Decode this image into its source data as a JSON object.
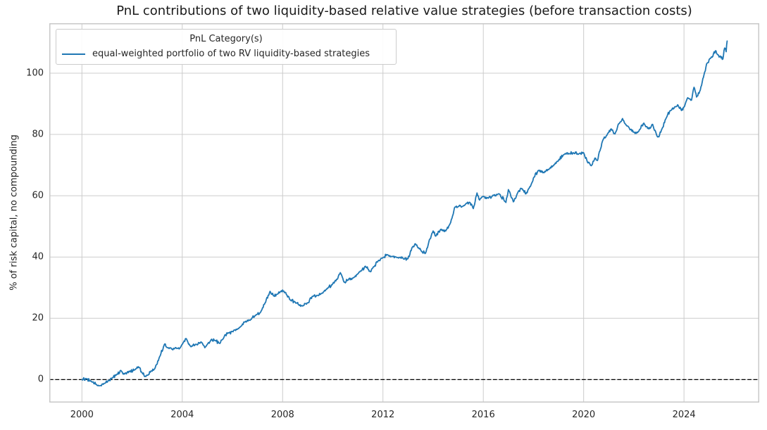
{
  "chart_data": {
    "type": "line",
    "title": "PnL contributions of two liquidity-based relative value strategies (before transaction costs)",
    "xlabel": "",
    "ylabel": "% of risk capital, no compounding",
    "xlim": [
      1998.7,
      2027.0
    ],
    "ylim": [
      -7.5,
      116.3
    ],
    "grid": true,
    "x_ticks": {
      "values": [
        2000,
        2004,
        2008,
        2012,
        2016,
        2020,
        2024
      ],
      "labels": [
        "2000",
        "2004",
        "2008",
        "2012",
        "2016",
        "2020",
        "2024"
      ]
    },
    "y_ticks": {
      "values": [
        0,
        20,
        40,
        60,
        80,
        100
      ],
      "labels": [
        "0",
        "20",
        "40",
        "60",
        "80",
        "100"
      ]
    },
    "zero_line": {
      "y": 0,
      "style": "dashed",
      "color": "#000000"
    },
    "legend": {
      "title": "PnL Category(s)",
      "position": "upper left",
      "entries": [
        {
          "label": "equal-weighted portfolio of two RV liquidity-based strategies",
          "color": "#1f77b4"
        }
      ]
    },
    "render_noise": {
      "amplitude": 0.55,
      "per_year": 40,
      "seed": 12
    },
    "series": [
      {
        "name": "equal-weighted portfolio of two RV liquidity-based strategies",
        "color": "#1f77b4",
        "x": [
          2000.0,
          2000.17,
          2000.4,
          2000.7,
          2000.9,
          2001.05,
          2001.2,
          2001.4,
          2001.55,
          2001.7,
          2001.9,
          2002.1,
          2002.25,
          2002.4,
          2002.55,
          2002.75,
          2002.9,
          2003.1,
          2003.3,
          2003.45,
          2003.6,
          2003.75,
          2003.9,
          2004.0,
          2004.15,
          2004.35,
          2004.55,
          2004.75,
          2004.9,
          2005.0,
          2005.15,
          2005.3,
          2005.5,
          2005.7,
          2005.85,
          2006.0,
          2006.2,
          2006.35,
          2006.5,
          2006.7,
          2006.9,
          2007.1,
          2007.3,
          2007.5,
          2007.65,
          2007.8,
          2007.95,
          2008.1,
          2008.3,
          2008.5,
          2008.65,
          2008.8,
          2009.0,
          2009.2,
          2009.4,
          2009.6,
          2009.8,
          2010.0,
          2010.2,
          2010.3,
          2010.45,
          2010.6,
          2010.8,
          2011.0,
          2011.15,
          2011.3,
          2011.5,
          2011.6,
          2011.8,
          2012.0,
          2012.15,
          2012.35,
          2012.6,
          2012.85,
          2013.0,
          2013.15,
          2013.3,
          2013.55,
          2013.7,
          2013.85,
          2014.0,
          2014.1,
          2014.3,
          2014.5,
          2014.7,
          2014.85,
          2015.0,
          2015.2,
          2015.45,
          2015.6,
          2015.75,
          2015.85,
          2016.0,
          2016.2,
          2016.4,
          2016.65,
          2016.9,
          2017.0,
          2017.2,
          2017.4,
          2017.55,
          2017.7,
          2017.9,
          2018.0,
          2018.2,
          2018.4,
          2018.6,
          2018.8,
          2019.0,
          2019.2,
          2019.4,
          2019.6,
          2019.8,
          2020.0,
          2020.15,
          2020.3,
          2020.45,
          2020.55,
          2020.75,
          2020.9,
          2021.1,
          2021.25,
          2021.4,
          2021.55,
          2021.7,
          2021.85,
          2022.0,
          2022.15,
          2022.4,
          2022.6,
          2022.75,
          2022.9,
          2023.0,
          2023.1,
          2023.3,
          2023.45,
          2023.6,
          2023.75,
          2023.9,
          2024.0,
          2024.15,
          2024.3,
          2024.4,
          2024.5,
          2024.65,
          2024.8,
          2024.9,
          2025.05,
          2025.15,
          2025.25,
          2025.35,
          2025.45,
          2025.55,
          2025.62,
          2025.68,
          2025.72
        ],
        "y": [
          0.0,
          0.3,
          -0.8,
          -2.0,
          -1.2,
          -0.3,
          0.5,
          1.8,
          3.0,
          1.8,
          2.6,
          3.2,
          4.2,
          2.2,
          1.0,
          2.8,
          3.5,
          7.5,
          11.6,
          10.4,
          9.9,
          10.4,
          10.2,
          11.5,
          13.4,
          10.7,
          11.5,
          12.3,
          10.4,
          11.5,
          13.0,
          12.8,
          11.8,
          14.6,
          15.2,
          15.7,
          16.4,
          17.5,
          18.8,
          19.3,
          20.9,
          21.8,
          25.0,
          28.8,
          27.3,
          27.9,
          29.0,
          28.5,
          26.0,
          25.3,
          24.4,
          24.0,
          25.0,
          27.2,
          27.5,
          28.2,
          29.8,
          31.3,
          33.0,
          34.9,
          31.8,
          32.5,
          33.2,
          34.5,
          35.5,
          37.0,
          35.2,
          36.5,
          38.6,
          39.8,
          40.8,
          40.2,
          39.8,
          39.3,
          39.5,
          42.9,
          44.3,
          41.8,
          41.3,
          45.6,
          48.5,
          46.8,
          49.0,
          48.5,
          51.3,
          56.0,
          56.5,
          56.6,
          57.9,
          55.8,
          60.9,
          58.6,
          59.8,
          59.2,
          60.2,
          60.5,
          57.8,
          62.0,
          58.0,
          61.5,
          62.3,
          60.6,
          63.5,
          65.8,
          68.3,
          67.6,
          68.5,
          69.8,
          71.6,
          73.4,
          73.8,
          74.0,
          73.6,
          74.0,
          71.0,
          69.8,
          72.3,
          71.5,
          77.8,
          79.5,
          81.8,
          80.2,
          83.5,
          85.2,
          83.0,
          81.5,
          80.8,
          80.6,
          83.7,
          81.8,
          83.3,
          80.0,
          79.2,
          81.4,
          85.5,
          87.8,
          88.5,
          89.7,
          87.8,
          88.9,
          92.0,
          91.2,
          95.4,
          92.2,
          94.5,
          99.5,
          103.0,
          104.8,
          105.5,
          107.3,
          106.0,
          105.6,
          104.6,
          108.2,
          107.0,
          110.5
        ]
      }
    ]
  },
  "colors": {
    "series": "#1f77b4",
    "grid": "#cccccc",
    "spine": "#c8c8c8",
    "text": "#262626",
    "title_text": "#1a1a1a",
    "zero_line": "#000000",
    "background": "#ffffff"
  }
}
